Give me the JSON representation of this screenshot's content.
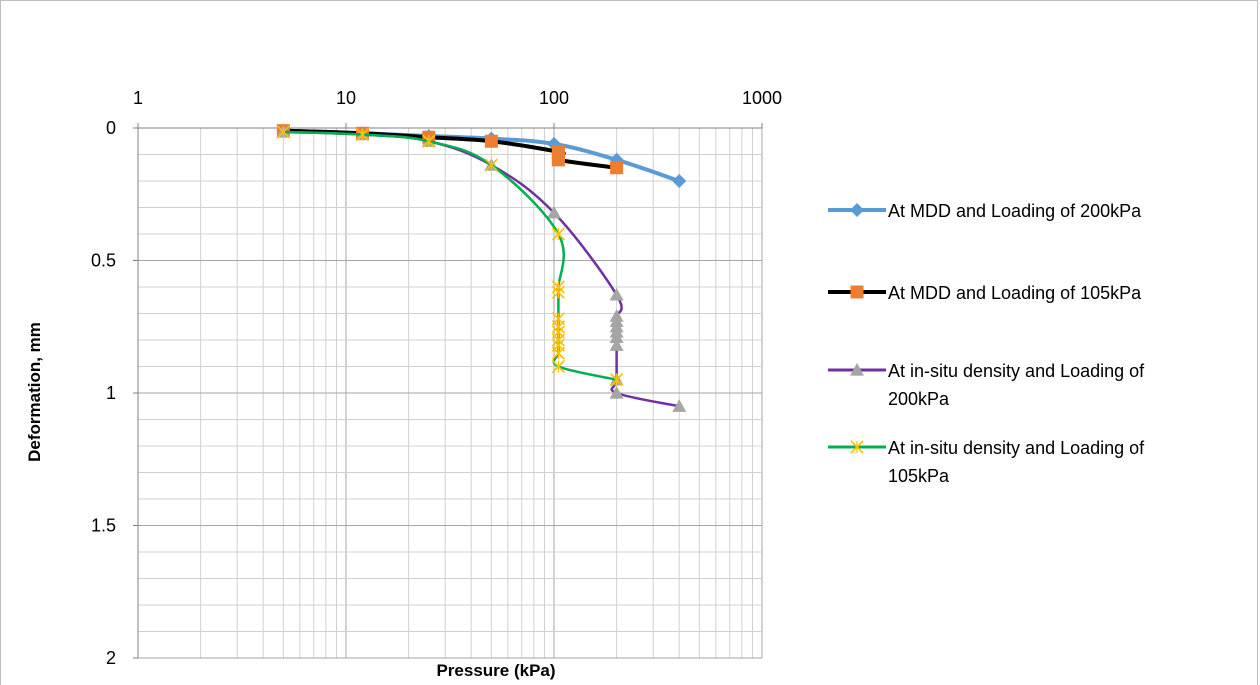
{
  "chart_data": {
    "type": "line",
    "xlabel": "Pressure (kPa)",
    "ylabel": "Deformation, mm",
    "x_scale": "log",
    "x_ticks": [
      "1",
      "10",
      "100",
      "1000"
    ],
    "y_ticks": [
      "0",
      "0.5",
      "1",
      "1.5",
      "2"
    ],
    "xlim": [
      1,
      1000
    ],
    "ylim": [
      0,
      2
    ],
    "y_inverted": true,
    "x_axis_position": "top",
    "grid": true,
    "legend_position": "right",
    "series": [
      {
        "name": "At MDD and Loading of 200kPa",
        "color": "#5b9bd5",
        "marker": "diamond",
        "points": [
          [
            5,
            0.01
          ],
          [
            12,
            0.02
          ],
          [
            25,
            0.03
          ],
          [
            50,
            0.04
          ],
          [
            100,
            0.06
          ],
          [
            200,
            0.12
          ],
          [
            400,
            0.2
          ]
        ]
      },
      {
        "name": "At MDD and Loading of 105kPa",
        "color": "#000000",
        "marker_color": "#ed7d31",
        "marker": "square",
        "points": [
          [
            5,
            0.01
          ],
          [
            12,
            0.02
          ],
          [
            25,
            0.035
          ],
          [
            50,
            0.05
          ],
          [
            105,
            0.09
          ],
          [
            105,
            0.1
          ],
          [
            105,
            0.12
          ],
          [
            200,
            0.15
          ]
        ]
      },
      {
        "name": "At in-situ density and Loading of 200kPa",
        "color": "#7030a0",
        "marker_color": "#a5a5a5",
        "marker": "triangle",
        "points": [
          [
            5,
            0.015
          ],
          [
            12,
            0.025
          ],
          [
            25,
            0.05
          ],
          [
            50,
            0.14
          ],
          [
            100,
            0.32
          ],
          [
            200,
            0.63
          ],
          [
            200,
            0.71
          ],
          [
            200,
            0.73
          ],
          [
            200,
            0.75
          ],
          [
            200,
            0.77
          ],
          [
            200,
            0.79
          ],
          [
            200,
            0.82
          ],
          [
            200,
            0.95
          ],
          [
            200,
            1.0
          ],
          [
            400,
            1.05
          ]
        ]
      },
      {
        "name": "At in-situ density and Loading of 105kPa",
        "color": "#00b050",
        "marker_color": "#ffc000",
        "marker": "x",
        "points": [
          [
            5,
            0.015
          ],
          [
            12,
            0.025
          ],
          [
            25,
            0.05
          ],
          [
            50,
            0.14
          ],
          [
            105,
            0.4
          ],
          [
            105,
            0.6
          ],
          [
            105,
            0.62
          ],
          [
            105,
            0.72
          ],
          [
            105,
            0.75
          ],
          [
            105,
            0.77
          ],
          [
            105,
            0.8
          ],
          [
            105,
            0.82
          ],
          [
            105,
            0.85
          ],
          [
            105,
            0.9
          ],
          [
            200,
            0.95
          ]
        ]
      }
    ],
    "legend_lines": [
      [
        "At MDD and Loading of 200kPa"
      ],
      [
        "At MDD and Loading of 105kPa"
      ],
      [
        "At in-situ density and Loading of",
        "200kPa"
      ],
      [
        "At in-situ density and Loading of",
        "105kPa"
      ]
    ]
  }
}
